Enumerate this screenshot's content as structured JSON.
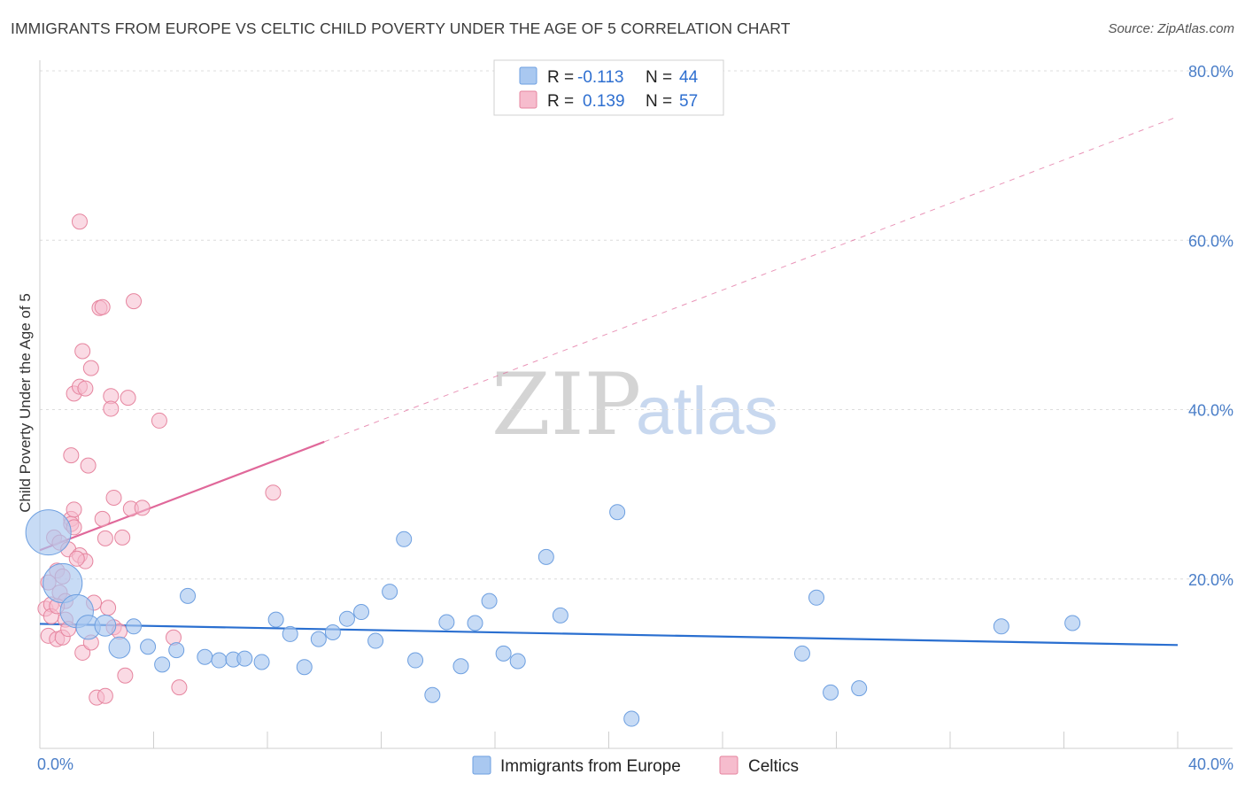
{
  "title": "IMMIGRANTS FROM EUROPE VS CELTIC CHILD POVERTY UNDER THE AGE OF 5 CORRELATION CHART",
  "source": "Source: ZipAtlas.com",
  "watermark": {
    "zip": "ZIP",
    "atlas": "atlas"
  },
  "colors": {
    "blue_fill": "#a9c8f0",
    "blue_stroke": "#6d9fe0",
    "blue_line": "#2a6fd0",
    "pink_fill": "#f6bccd",
    "pink_stroke": "#e6859f",
    "pink_line": "#e0689a",
    "grid": "#dcdcdc",
    "tick_text": "#4a7ec8"
  },
  "legend": {
    "series1": {
      "r_label": "R =",
      "r_value": "-0.113",
      "n_label": "N =",
      "n_value": "44"
    },
    "series2": {
      "r_label": "R =",
      "r_value": "0.139",
      "n_label": "N =",
      "n_value": "57"
    }
  },
  "bottom_legend": [
    "Immigrants from Europe",
    "Celtics"
  ],
  "chart_data": {
    "type": "scatter",
    "title": "IMMIGRANTS FROM EUROPE VS CELTIC CHILD POVERTY UNDER THE AGE OF 5 CORRELATION CHART",
    "xlabel": "",
    "ylabel": "Child Poverty Under the Age of 5",
    "xlim": [
      0,
      40
    ],
    "ylim": [
      0,
      80
    ],
    "x_tick_labels": [
      "0.0%",
      "40.0%"
    ],
    "y_tick_labels": [
      "20.0%",
      "40.0%",
      "60.0%",
      "80.0%"
    ],
    "y_ticks": [
      20,
      40,
      60,
      80
    ],
    "x_minor_ticks": [
      4,
      8,
      12,
      16,
      20,
      24,
      28,
      32,
      36,
      40
    ],
    "grid": true,
    "legend_position": "top-center",
    "series": [
      {
        "name": "Immigrants from Europe",
        "color": "#a9c8f0",
        "r": -0.113,
        "n": 44,
        "trend": {
          "x0": 0,
          "y0": 14.7,
          "x1": 40,
          "y1": 12.2
        },
        "points": [
          [
            0.3,
            25.5,
            3
          ],
          [
            0.8,
            19.5,
            2.6
          ],
          [
            1.3,
            16.2,
            2.2
          ],
          [
            1.7,
            14.3,
            1.6
          ],
          [
            2.3,
            14.5,
            1.4
          ],
          [
            2.8,
            11.9,
            1.4
          ],
          [
            3.3,
            14.4,
            1.0
          ],
          [
            3.8,
            12.0,
            1.0
          ],
          [
            4.3,
            9.9,
            1.0
          ],
          [
            4.8,
            11.6,
            1.0
          ],
          [
            5.2,
            18.0,
            1.0
          ],
          [
            5.8,
            10.8,
            1.0
          ],
          [
            6.3,
            10.4,
            1.0
          ],
          [
            6.8,
            10.5,
            1.0
          ],
          [
            7.2,
            10.6,
            1.0
          ],
          [
            7.8,
            10.2,
            1.0
          ],
          [
            8.3,
            15.2,
            1.0
          ],
          [
            8.8,
            13.5,
            1.0
          ],
          [
            9.3,
            9.6,
            1.0
          ],
          [
            9.8,
            12.9,
            1.0
          ],
          [
            10.3,
            13.7,
            1.0
          ],
          [
            10.8,
            15.3,
            1.0
          ],
          [
            11.3,
            16.1,
            1.0
          ],
          [
            11.8,
            12.7,
            1.0
          ],
          [
            12.3,
            18.5,
            1.0
          ],
          [
            12.8,
            24.7,
            1.0
          ],
          [
            13.2,
            10.4,
            1.0
          ],
          [
            13.8,
            6.3,
            1.0
          ],
          [
            14.3,
            14.9,
            1.0
          ],
          [
            14.8,
            9.7,
            1.0
          ],
          [
            15.3,
            14.8,
            1.0
          ],
          [
            15.8,
            17.4,
            1.0
          ],
          [
            16.3,
            11.2,
            1.0
          ],
          [
            16.8,
            10.3,
            1.0
          ],
          [
            17.8,
            22.6,
            1.0
          ],
          [
            18.3,
            15.7,
            1.0
          ],
          [
            20.3,
            27.9,
            1.0
          ],
          [
            20.8,
            3.5,
            1.0
          ],
          [
            26.8,
            11.2,
            1.0
          ],
          [
            27.3,
            17.8,
            1.0
          ],
          [
            27.8,
            6.6,
            1.0
          ],
          [
            28.8,
            7.1,
            1.0
          ],
          [
            33.8,
            14.4,
            1.0
          ],
          [
            36.3,
            14.8,
            1.0
          ]
        ]
      },
      {
        "name": "Celtics",
        "color": "#f6bccd",
        "r": 0.139,
        "n": 57,
        "trend": {
          "x0": 0,
          "y0": 23.4,
          "x1": 10,
          "y1": 36.2,
          "dashed_to": {
            "x": 40,
            "y": 74.6
          }
        },
        "points": [
          [
            0.2,
            16.5,
            1.0
          ],
          [
            0.3,
            13.3,
            1.0
          ],
          [
            0.4,
            17.0,
            1.0
          ],
          [
            0.5,
            24.9,
            1.0
          ],
          [
            0.6,
            12.9,
            1.0
          ],
          [
            0.6,
            21.0,
            1.0
          ],
          [
            0.7,
            24.3,
            1.0
          ],
          [
            0.7,
            18.4,
            1.0
          ],
          [
            0.8,
            20.3,
            1.0
          ],
          [
            0.8,
            13.1,
            1.0
          ],
          [
            0.9,
            17.4,
            1.0
          ],
          [
            0.9,
            15.2,
            1.0
          ],
          [
            1.0,
            23.5,
            1.0
          ],
          [
            1.0,
            14.1,
            1.0
          ],
          [
            1.1,
            27.1,
            1.0
          ],
          [
            1.1,
            26.5,
            1.0
          ],
          [
            1.2,
            28.2,
            1.0
          ],
          [
            1.2,
            26.1,
            1.0
          ],
          [
            1.1,
            34.6,
            1.0
          ],
          [
            1.2,
            41.9,
            1.0
          ],
          [
            1.4,
            42.7,
            1.0
          ],
          [
            1.4,
            22.8,
            1.0
          ],
          [
            1.5,
            11.3,
            1.0
          ],
          [
            1.5,
            46.9,
            1.0
          ],
          [
            1.6,
            42.5,
            1.0
          ],
          [
            1.6,
            22.1,
            1.0
          ],
          [
            1.7,
            33.4,
            1.0
          ],
          [
            1.8,
            44.9,
            1.0
          ],
          [
            1.8,
            12.5,
            1.0
          ],
          [
            1.9,
            17.2,
            1.0
          ],
          [
            2.0,
            6.0,
            1.0
          ],
          [
            2.1,
            52.0,
            1.0
          ],
          [
            2.2,
            52.1,
            1.0
          ],
          [
            2.2,
            27.1,
            1.0
          ],
          [
            2.3,
            24.8,
            1.0
          ],
          [
            2.3,
            6.2,
            1.0
          ],
          [
            2.4,
            16.6,
            1.0
          ],
          [
            2.5,
            41.6,
            1.0
          ],
          [
            2.5,
            40.1,
            1.0
          ],
          [
            2.6,
            29.6,
            1.0
          ],
          [
            2.6,
            14.3,
            1.0
          ],
          [
            2.9,
            24.9,
            1.0
          ],
          [
            3.0,
            8.6,
            1.0
          ],
          [
            3.1,
            41.4,
            1.0
          ],
          [
            3.2,
            28.3,
            1.0
          ],
          [
            3.3,
            52.8,
            1.0
          ],
          [
            3.6,
            28.4,
            1.0
          ],
          [
            4.2,
            38.7,
            1.0
          ],
          [
            4.7,
            13.1,
            1.0
          ],
          [
            4.9,
            7.2,
            1.0
          ],
          [
            8.2,
            30.2,
            1.0
          ],
          [
            1.3,
            22.4,
            1.0
          ],
          [
            0.4,
            15.6,
            1.0
          ],
          [
            0.3,
            19.6,
            1.0
          ],
          [
            0.6,
            16.8,
            1.0
          ],
          [
            1.4,
            62.2,
            1.0
          ],
          [
            2.8,
            13.8,
            1.0
          ]
        ]
      }
    ]
  }
}
